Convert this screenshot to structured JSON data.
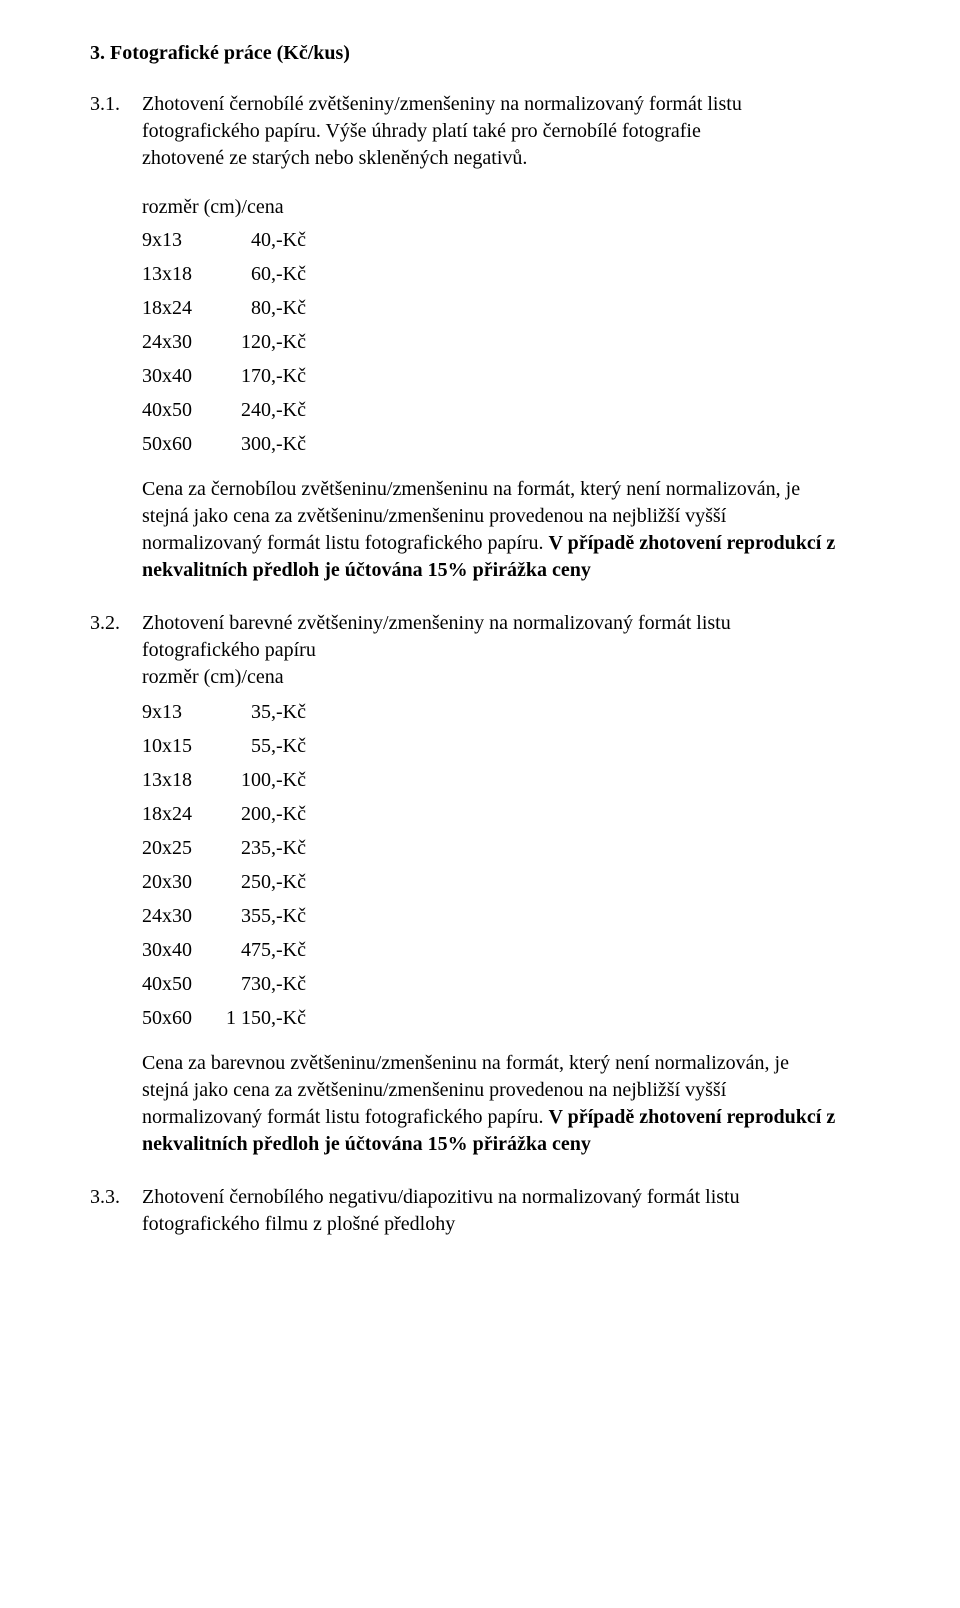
{
  "section": {
    "heading": "3. Fotografické práce (Kč/kus)"
  },
  "item31": {
    "number": "3.1.",
    "line1": "Zhotovení černobílé zvětšeniny/zmenšeniny na normalizovaný formát listu",
    "line2": "fotografického papíru. Výše úhrady platí také pro černobílé fotografie",
    "line3": "zhotovené ze starých nebo skleněných negativů.",
    "sizes_heading": "rozměr (cm)/cena",
    "sizes": [
      {
        "label": "9x13",
        "price": "40,-Kč"
      },
      {
        "label": "13x18",
        "price": "60,-Kč"
      },
      {
        "label": "18x24",
        "price": "80,-Kč"
      },
      {
        "label": "24x30",
        "price": "120,-Kč"
      },
      {
        "label": "30x40",
        "price": "170,-Kč"
      },
      {
        "label": "40x50",
        "price": "240,-Kč"
      },
      {
        "label": "50x60",
        "price": "300,-Kč"
      }
    ],
    "note_plain": "Cena za černobílou zvětšeninu/zmenšeninu na formát, který není normalizován, je stejná jako cena za zvětšeninu/zmenšeninu provedenou na nejbližší vyšší normalizovaný formát listu fotografického papíru. ",
    "note_bold": "V případě zhotovení reprodukcí z nekvalitních předloh je účtována 15% přirážka ceny"
  },
  "item32": {
    "number": "3.2.",
    "line1": "Zhotovení barevné zvětšeniny/zmenšeniny na normalizovaný formát listu",
    "line2": "fotografického papíru",
    "sizes_heading": "rozměr (cm)/cena",
    "sizes": [
      {
        "label": "9x13",
        "price": "35,-Kč"
      },
      {
        "label": "10x15",
        "price": "55,-Kč"
      },
      {
        "label": "13x18",
        "price": "100,-Kč"
      },
      {
        "label": "18x24",
        "price": "200,-Kč"
      },
      {
        "label": "20x25",
        "price": "235,-Kč"
      },
      {
        "label": "20x30",
        "price": "250,-Kč"
      },
      {
        "label": "24x30",
        "price": "355,-Kč"
      },
      {
        "label": "30x40",
        "price": "475,-Kč"
      },
      {
        "label": "40x50",
        "price": "730,-Kč"
      },
      {
        "label": "50x60",
        "price": "1 150,-Kč"
      }
    ],
    "note_plain": "Cena za barevnou zvětšeninu/zmenšeninu na formát, který není normalizován, je stejná jako cena za zvětšeninu/zmenšeninu provedenou na nejbližší vyšší normalizovaný formát listu fotografického papíru. ",
    "note_bold": "V případě zhotovení reprodukcí z nekvalitních předloh je účtována 15% přirážka ceny"
  },
  "item33": {
    "number": "3.3.",
    "line1": "Zhotovení černobílého negativu/diapozitivu na normalizovaný formát listu",
    "line2": "fotografického filmu z plošné předlohy"
  }
}
